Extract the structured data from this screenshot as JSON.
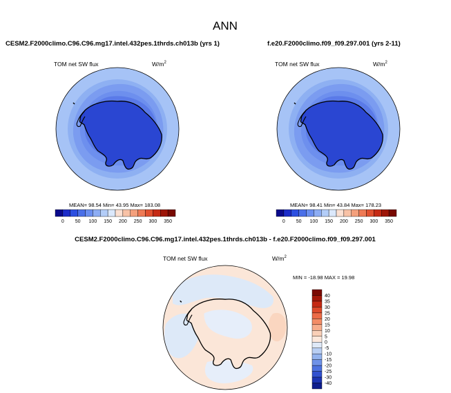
{
  "figure": {
    "title": "ANN"
  },
  "panels": [
    {
      "case_name": "CESM2.F2000climo.C96.C96.mg17.intel.432pes.1thrds.ch013b (yrs 1)",
      "variable": "TOM net SW flux",
      "units_base": "W/m",
      "units_exp": "2",
      "stats": {
        "mean_label": "MEAN=",
        "mean": "98.54",
        "min_label": "Min=",
        "min": "43.95",
        "max_label": "Max=",
        "max": "183.08"
      }
    },
    {
      "case_name": "f.e20.F2000climo.f09_f09.297.001 (yrs 2-11)",
      "variable": "TOM net SW flux",
      "units_base": "W/m",
      "units_exp": "2",
      "stats": {
        "mean_label": "MEAN=",
        "mean": "98.41",
        "min_label": "Min=",
        "min": "43.84",
        "max_label": "Max=",
        "max": "178.23"
      }
    },
    {
      "case_name": "CESM2.F2000climo.C96.C96.mg17.intel.432pes.1thrds.ch013b - f.e20.F2000climo.f09_f09.297.001",
      "variable": "TOM net SW flux",
      "units_base": "W/m",
      "units_exp": "2",
      "stats": {
        "min_label": "MIN =",
        "min": "-18.98",
        "max_label": "MAX =",
        "max": "19.98"
      }
    }
  ],
  "colorbars": {
    "absolute": {
      "orientation": "horizontal",
      "ticks": [
        "0",
        "50",
        "100",
        "150",
        "200",
        "250",
        "300",
        "350"
      ],
      "levels": [
        0,
        25,
        50,
        75,
        100,
        125,
        150,
        175,
        200,
        225,
        250,
        275,
        300,
        325,
        350
      ],
      "colors": [
        "#0a0a8c",
        "#1c2cc8",
        "#2c4fe0",
        "#4a6fe8",
        "#6a8ef0",
        "#8dadf4",
        "#b3cdf8",
        "#dbe8fb",
        "#fbe0d2",
        "#f8c2a6",
        "#f4a07c",
        "#ee7a55",
        "#e0502f",
        "#c52a14",
        "#9e1608",
        "#780a02"
      ]
    },
    "difference": {
      "orientation": "vertical",
      "ticks": [
        "40",
        "35",
        "30",
        "25",
        "20",
        "15",
        "10",
        "5",
        "0",
        "-5",
        "-10",
        "-15",
        "-20",
        "-25",
        "-30",
        "-40"
      ],
      "colors_top_to_bottom": [
        "#7a0a03",
        "#a3180a",
        "#c52a14",
        "#dd4a2b",
        "#ec6b47",
        "#f38c66",
        "#f7ad8c",
        "#fad0b8",
        "#fce8dc",
        "#dfe9f7",
        "#b9cff3",
        "#93b3ee",
        "#6f92e8",
        "#4d72e0",
        "#3151cf",
        "#1b33b2",
        "#0e1d8c"
      ]
    }
  },
  "map_fields": {
    "panel_1": {
      "ocean_bands": [
        "#a6c3f6",
        "#8eb0f2",
        "#7b9cf0",
        "#6d8fee",
        "#5a7ae8",
        "#3b58dc"
      ],
      "continent_interior": "#2a46d2"
    },
    "panel_2": {
      "ocean_bands": [
        "#a6c3f6",
        "#8eb0f2",
        "#7b9cf0",
        "#6d8fee",
        "#5a7ae8",
        "#3b58dc"
      ],
      "continent_interior": "#2a46d2"
    },
    "panel_3": {
      "base": "#fbe6d8",
      "blobs": [
        "#dde9f8",
        "#fad6c0",
        "#e6eefa"
      ]
    }
  }
}
